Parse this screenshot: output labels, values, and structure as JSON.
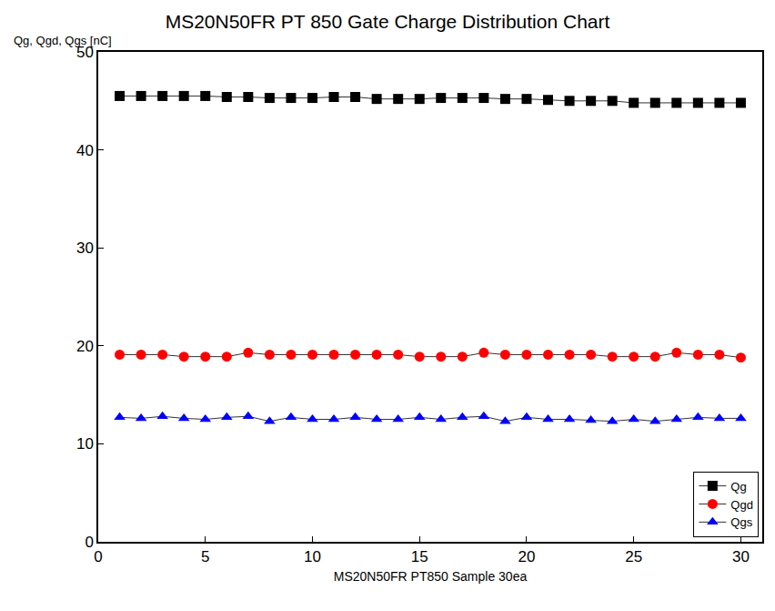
{
  "chart_data": {
    "type": "line",
    "title": "MS20N50FR PT 850 Gate Charge Distribution Chart",
    "xlabel": "MS20N50FR PT850 Sample 30ea",
    "ylabel": "Qg, Qgd, Qgs [nC]",
    "x": [
      1,
      2,
      3,
      4,
      5,
      6,
      7,
      8,
      9,
      10,
      11,
      12,
      13,
      14,
      15,
      16,
      17,
      18,
      19,
      20,
      21,
      22,
      23,
      24,
      25,
      26,
      27,
      28,
      29,
      30
    ],
    "series": [
      {
        "name": "Qg",
        "color": "#000000",
        "marker": "square",
        "values": [
          45.5,
          45.5,
          45.5,
          45.5,
          45.5,
          45.4,
          45.4,
          45.3,
          45.3,
          45.3,
          45.4,
          45.4,
          45.2,
          45.2,
          45.2,
          45.3,
          45.3,
          45.3,
          45.2,
          45.2,
          45.1,
          45.0,
          45.0,
          45.0,
          44.8,
          44.8,
          44.8,
          44.8,
          44.8,
          44.8
        ]
      },
      {
        "name": "Qgd",
        "color": "#ff0000",
        "marker": "circle",
        "values": [
          19.1,
          19.1,
          19.1,
          18.9,
          18.9,
          18.9,
          19.3,
          19.1,
          19.1,
          19.1,
          19.1,
          19.1,
          19.1,
          19.1,
          18.9,
          18.9,
          18.9,
          19.3,
          19.1,
          19.1,
          19.1,
          19.1,
          19.1,
          18.9,
          18.9,
          18.9,
          19.3,
          19.1,
          19.1,
          18.8
        ]
      },
      {
        "name": "Qgs",
        "color": "#0000ff",
        "marker": "triangle-up",
        "values": [
          12.7,
          12.6,
          12.8,
          12.6,
          12.5,
          12.7,
          12.8,
          12.3,
          12.7,
          12.5,
          12.5,
          12.7,
          12.5,
          12.5,
          12.7,
          12.5,
          12.7,
          12.8,
          12.3,
          12.7,
          12.5,
          12.5,
          12.4,
          12.3,
          12.5,
          12.3,
          12.5,
          12.7,
          12.6,
          12.6
        ]
      }
    ],
    "xlim": [
      0,
      31
    ],
    "xticks": [
      0,
      5,
      10,
      15,
      20,
      25,
      30
    ],
    "ylim": [
      0,
      50
    ],
    "yticks": [
      0,
      10,
      20,
      30,
      40,
      50
    ],
    "grid": false,
    "legend": "lower right"
  }
}
